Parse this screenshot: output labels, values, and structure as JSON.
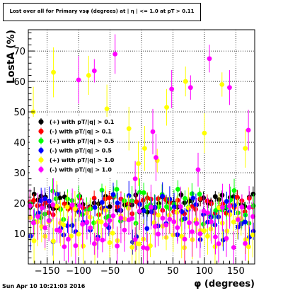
{
  "title": "Lost over all for Primary vsφ (degrees) at | η | <= 1.0 at pT > 0.11",
  "datestamp": "Sun Apr 10 10:21:03 2016",
  "chart_data": {
    "type": "scatter",
    "title": "Lost over all for Primary vsφ (degrees) at | η | <= 1.0 at pT > 0.11",
    "xlabel": "φ (degrees)",
    "ylabel": "LostA (%)",
    "xlim": [
      -180,
      180
    ],
    "ylim": [
      0,
      77
    ],
    "x_ticks": [
      -150,
      -100,
      -50,
      0,
      50,
      100,
      150
    ],
    "y_ticks": [
      10,
      20,
      30,
      40,
      50,
      60,
      70
    ],
    "grid": true,
    "legend_position": "left-middle",
    "series": [
      {
        "name": "(+) with pT/|q| > 0.1",
        "color": "#000000",
        "marker": "circle",
        "band": [
          17,
          23
        ],
        "err": 1.8
      },
      {
        "name": "(-) with pT/|q| > 0.1",
        "color": "#ff0000",
        "marker": "circle",
        "band": [
          16,
          22
        ],
        "err": 1.8
      },
      {
        "name": "(+) with pT/|q| > 0.5",
        "color": "#00ff00",
        "marker": "circle",
        "band": [
          13,
          25
        ],
        "err": 3.5
      },
      {
        "name": "(-) with pT/|q| > 0.5",
        "color": "#0000ff",
        "marker": "circle",
        "band": [
          7,
          23
        ],
        "err": 3.5
      },
      {
        "name": "(+) with pT/|q| > 1.0",
        "color": "#ffff00",
        "marker": "circle",
        "band": [
          5,
          20
        ],
        "err": 6,
        "outliers": [
          [
            -172,
            50
          ],
          [
            -140,
            63
          ],
          [
            -84,
            62
          ],
          [
            -55,
            51
          ],
          [
            -20,
            44.5
          ],
          [
            -5,
            33
          ],
          [
            5,
            38
          ],
          [
            25,
            34
          ],
          [
            40,
            51.5
          ],
          [
            70,
            60
          ],
          [
            100,
            43
          ],
          [
            128,
            59
          ],
          [
            165,
            38
          ]
        ]
      },
      {
        "name": "(-) with pT/|q| > 1.0",
        "color": "#ff00ff",
        "marker": "circle",
        "band": [
          5,
          20
        ],
        "err": 6,
        "outliers": [
          [
            -140,
            30
          ],
          [
            -100,
            60.5
          ],
          [
            -75,
            63.5
          ],
          [
            -42,
            69
          ],
          [
            -10,
            28
          ],
          [
            18,
            43.5
          ],
          [
            23,
            35
          ],
          [
            48,
            57.5
          ],
          [
            78,
            58
          ],
          [
            90,
            31
          ],
          [
            108,
            67.5
          ],
          [
            140,
            58
          ],
          [
            170,
            44
          ]
        ]
      }
    ]
  }
}
